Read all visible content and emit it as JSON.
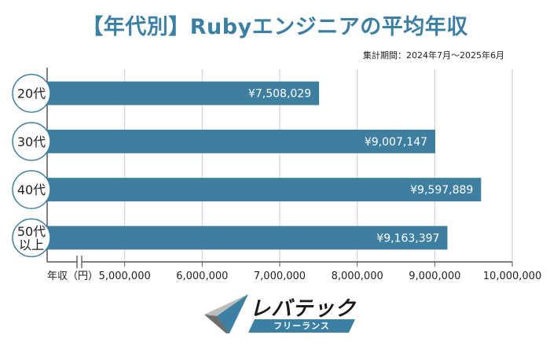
{
  "header": {
    "title": "【年代別】Rubyエンジニアの平均年収",
    "period": "集計期間：2024年7月～2025年6月"
  },
  "colors": {
    "title": "#3b7fa3",
    "bar": "#3e7fa0",
    "circle_border": "#3e7fa0",
    "axis": "#555555",
    "grid": "#cccccc",
    "logo_accent": "#3b7fa3"
  },
  "chart_data": {
    "type": "bar",
    "orientation": "horizontal",
    "categories": [
      "20代",
      "30代",
      "40代",
      "50代\n以上"
    ],
    "values": [
      7508029,
      9007147,
      9597889,
      9163397
    ],
    "value_labels": [
      "¥7,508,029",
      "¥9,007,147",
      "¥9,597,889",
      "¥9,163,397"
    ],
    "xlabel": "年収（円）",
    "xlim": [
      4000000,
      10000000
    ],
    "axis_break": true,
    "ticks": [
      5000000,
      6000000,
      7000000,
      8000000,
      9000000,
      10000000
    ],
    "tick_labels": [
      "5,000,000",
      "6,000,000",
      "7,000,000",
      "8,000,000",
      "9,000,000",
      "10,000,000"
    ],
    "grid": true
  },
  "logo": {
    "main": "レバテック",
    "sub": "フリーランス",
    "icon": "triangle-logo-icon"
  }
}
